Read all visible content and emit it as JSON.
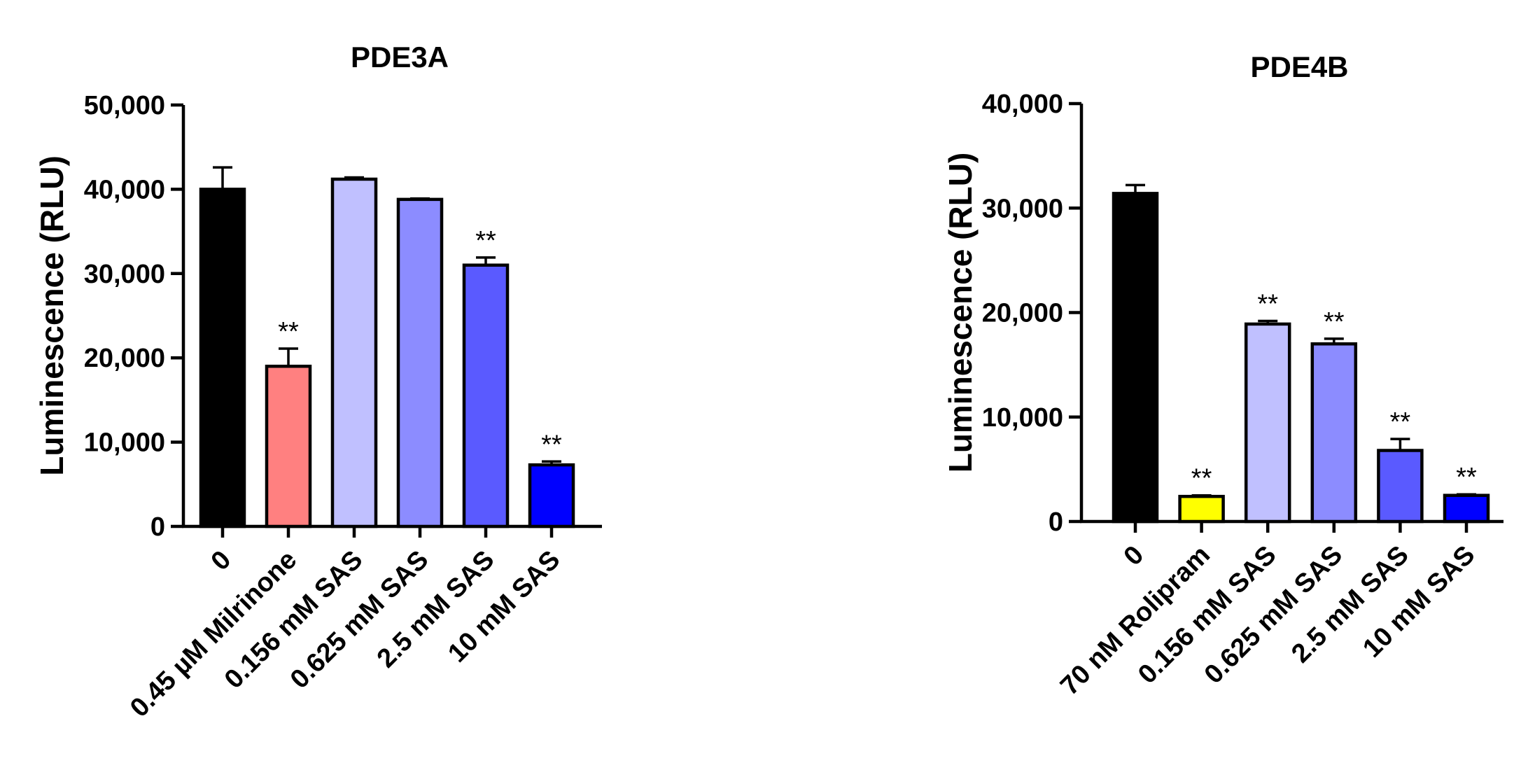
{
  "chart_data": [
    {
      "type": "bar",
      "title": "PDE3A",
      "ylabel": "Luminescence (RLU)",
      "xlabel": "",
      "ylim": [
        0,
        50000
      ],
      "yticks": [
        0,
        10000,
        20000,
        30000,
        40000,
        50000
      ],
      "ytick_labels": [
        "0",
        "10,000",
        "20,000",
        "30,000",
        "40,000",
        "50,000"
      ],
      "categories": [
        "0",
        "0.45 µM Milrinone",
        "0.156 mM SAS",
        "0.625 mM SAS",
        "2.5 mM SAS",
        "10 mM SAS"
      ],
      "values": [
        40000,
        19000,
        41200,
        38800,
        31000,
        7300
      ],
      "errors": [
        2600,
        2100,
        200,
        100,
        900,
        400
      ],
      "colors": [
        "#000000",
        "#ff8080",
        "#c0c0ff",
        "#8c8cff",
        "#5a5aff",
        "#0000ff"
      ],
      "annotations": [
        "",
        "**",
        "",
        "",
        "**",
        "**"
      ],
      "grid": false
    },
    {
      "type": "bar",
      "title": "PDE4B",
      "ylabel": "Luminescence (RLU)",
      "xlabel": "",
      "ylim": [
        0,
        40000
      ],
      "yticks": [
        0,
        10000,
        20000,
        30000,
        40000
      ],
      "ytick_labels": [
        "0",
        "10,000",
        "20,000",
        "30,000",
        "40,000"
      ],
      "categories": [
        "0",
        "70 nM Rolipram",
        "0.156 mM SAS",
        "0.625 mM SAS",
        "2.5 mM SAS",
        "10 mM SAS"
      ],
      "values": [
        31400,
        2400,
        18900,
        17000,
        6800,
        2500
      ],
      "errors": [
        800,
        100,
        300,
        500,
        1100,
        100
      ],
      "colors": [
        "#000000",
        "#ffff00",
        "#c0c0ff",
        "#8c8cff",
        "#5a5aff",
        "#0000ff"
      ],
      "annotations": [
        "",
        "**",
        "**",
        "**",
        "**",
        "**"
      ],
      "grid": false
    }
  ]
}
